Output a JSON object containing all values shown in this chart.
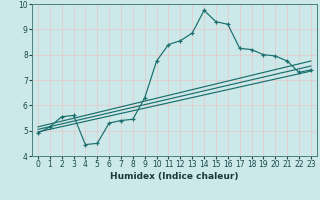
{
  "xlabel": "Humidex (Indice chaleur)",
  "bg_color": "#cce8e8",
  "grid_color": "#d4ecec",
  "line_color": "#1a6e6e",
  "xlim": [
    -0.5,
    23.5
  ],
  "ylim": [
    4,
    10
  ],
  "xticks": [
    0,
    1,
    2,
    3,
    4,
    5,
    6,
    7,
    8,
    9,
    10,
    11,
    12,
    13,
    14,
    15,
    16,
    17,
    18,
    19,
    20,
    21,
    22,
    23
  ],
  "yticks": [
    4,
    5,
    6,
    7,
    8,
    9,
    10
  ],
  "curve1_x": [
    0,
    1,
    2,
    3,
    4,
    5,
    6,
    7,
    8,
    9,
    10,
    11,
    12,
    13,
    14,
    15,
    16,
    17,
    18,
    19,
    20,
    21,
    22,
    23
  ],
  "curve1_y": [
    4.9,
    5.15,
    5.55,
    5.6,
    4.45,
    4.5,
    5.3,
    5.4,
    5.45,
    6.3,
    7.75,
    8.4,
    8.55,
    8.85,
    9.75,
    9.3,
    9.2,
    8.25,
    8.2,
    8.0,
    7.95,
    7.75,
    7.3,
    7.4
  ],
  "line1_x": [
    0,
    23
  ],
  "line1_y": [
    4.95,
    7.35
  ],
  "line2_x": [
    0,
    23
  ],
  "line2_y": [
    5.05,
    7.55
  ],
  "line3_x": [
    0,
    23
  ],
  "line3_y": [
    5.15,
    7.75
  ]
}
